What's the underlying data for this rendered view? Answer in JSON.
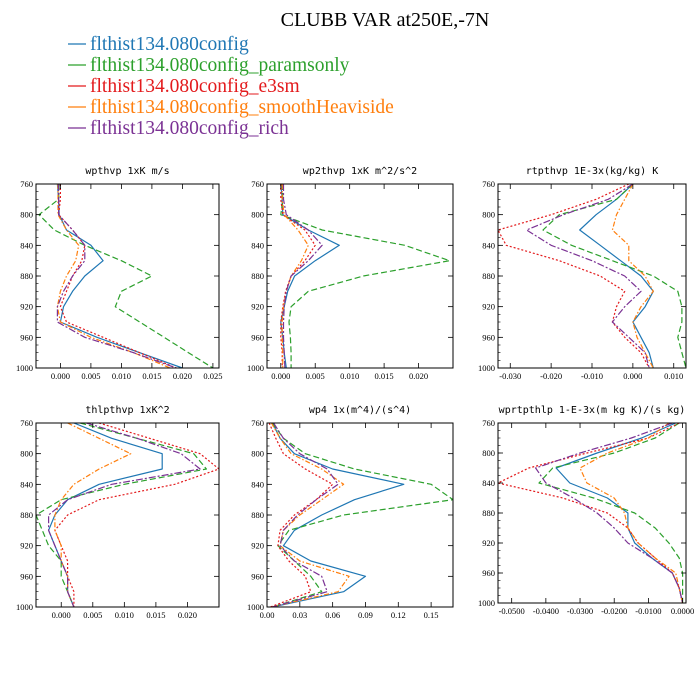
{
  "figure": {
    "title": "CLUBB VAR at250E,-7N"
  },
  "legend": [
    {
      "label": "flthist134.080config",
      "color": "#1f77b4"
    },
    {
      "label": "flthist134.080config_paramsonly",
      "color": "#2ca02c"
    },
    {
      "label": "flthist134.080config_e3sm",
      "color": "#e31a1c"
    },
    {
      "label": "flthist134.080config_smoothHeaviside",
      "color": "#ff7f0e"
    },
    {
      "label": "flthist134.080config_rich",
      "color": "#7b3294"
    }
  ],
  "chart_data": [
    {
      "type": "line",
      "title": "wpthvp  1xK m/s",
      "xlim": [
        -0.004,
        0.026
      ],
      "ylim": [
        760,
        1000
      ],
      "y_inverted": true,
      "xticks": [
        "0.000",
        "0.005",
        "0.010",
        "0.015",
        "0.020",
        "0.025"
      ],
      "xtick_values": [
        0,
        0.005,
        0.01,
        0.015,
        0.02,
        0.025
      ],
      "yticks": [
        "760",
        "800",
        "840",
        "880",
        "920",
        "960",
        "1000"
      ],
      "y": [
        760,
        780,
        800,
        820,
        840,
        860,
        880,
        900,
        920,
        940,
        960,
        980,
        1000
      ],
      "series": [
        {
          "values": [
            -0.0005,
            -0.0003,
            -0.0002,
            0.001,
            0.005,
            0.007,
            0.004,
            0.002,
            0.0005,
            0.0,
            0.006,
            0.013,
            0.02
          ]
        },
        {
          "values": [
            -0.0002,
            -0.0003,
            -0.0035,
            -0.001,
            0.004,
            0.01,
            0.015,
            0.01,
            0.009,
            0.013,
            0.017,
            0.021,
            0.025
          ]
        },
        {
          "values": [
            0.0,
            0.0,
            -0.0003,
            0.002,
            0.004,
            0.0035,
            0.002,
            0.001,
            0.0,
            0.001,
            0.007,
            0.013,
            0.019
          ]
        },
        {
          "values": [
            -0.0004,
            -0.0004,
            -0.0004,
            0.001,
            0.003,
            0.0025,
            0.001,
            0.0,
            -0.0005,
            0.0,
            0.005,
            0.012,
            0.018
          ]
        },
        {
          "values": [
            -0.0003,
            -0.0003,
            -0.0003,
            0.002,
            0.004,
            0.004,
            0.002,
            0.0005,
            -0.0005,
            -0.0005,
            0.004,
            0.012,
            0.019
          ]
        }
      ]
    },
    {
      "type": "line",
      "title": "wp2thvp  1xK m^2/s^2",
      "xlim": [
        -0.002,
        0.025
      ],
      "ylim": [
        760,
        1000
      ],
      "y_inverted": true,
      "xticks": [
        "0.000",
        "0.005",
        "0.010",
        "0.015",
        "0.020"
      ],
      "xtick_values": [
        0,
        0.005,
        0.01,
        0.015,
        0.02
      ],
      "yticks": [
        "760",
        "800",
        "840",
        "880",
        "920",
        "960",
        "1000"
      ],
      "y": [
        760,
        780,
        800,
        820,
        840,
        860,
        880,
        900,
        920,
        940,
        960,
        980,
        1000
      ],
      "series": [
        {
          "values": [
            0.0,
            0.0002,
            0.0003,
            0.004,
            0.0085,
            0.005,
            0.002,
            0.001,
            0.0005,
            0.0,
            0.0003,
            0.0005,
            0.0008
          ]
        },
        {
          "values": [
            0.0002,
            0.0003,
            0.0,
            0.006,
            0.018,
            0.0245,
            0.012,
            0.004,
            0.0015,
            0.0012,
            0.0014,
            0.0015,
            0.0015
          ]
        },
        {
          "values": [
            0.0,
            0.0,
            0.0003,
            0.0035,
            0.005,
            0.0035,
            0.0015,
            0.0007,
            0.0003,
            0.0,
            0.0,
            0.0002,
            0.0002
          ]
        },
        {
          "values": [
            0.0002,
            0.0002,
            0.0005,
            0.0025,
            0.004,
            0.003,
            0.0015,
            0.0008,
            0.0004,
            0.0002,
            0.0002,
            0.0003,
            0.0003
          ]
        },
        {
          "values": [
            0.0004,
            0.0004,
            0.0008,
            0.004,
            0.006,
            0.004,
            0.0015,
            0.0008,
            0.0005,
            0.0004,
            0.0004,
            0.0005,
            0.0006
          ]
        }
      ]
    },
    {
      "type": "line",
      "title": "rtpthvp  1E-3x(kg/kg) K",
      "xlim": [
        -0.033,
        0.013
      ],
      "ylim": [
        760,
        1000
      ],
      "y_inverted": true,
      "xticks": [
        "-0.030",
        "-0.020",
        "-0.010",
        "0.000",
        "0.010"
      ],
      "xtick_values": [
        -0.03,
        -0.02,
        -0.01,
        0,
        0.01
      ],
      "yticks": [
        "760",
        "800",
        "840",
        "880",
        "920",
        "960",
        "1000"
      ],
      "y": [
        760,
        780,
        800,
        820,
        840,
        860,
        880,
        900,
        920,
        940,
        960,
        980,
        1000
      ],
      "series": [
        {
          "values": [
            0.0,
            -0.004,
            -0.009,
            -0.013,
            -0.008,
            -0.003,
            0.002,
            0.005,
            0.003,
            0.0,
            0.002,
            0.004,
            0.005
          ]
        },
        {
          "values": [
            0.0,
            -0.004,
            -0.018,
            -0.022,
            -0.015,
            -0.005,
            0.005,
            0.011,
            0.012,
            0.012,
            0.011,
            0.012,
            0.013
          ]
        },
        {
          "values": [
            -0.001,
            -0.009,
            -0.02,
            -0.033,
            -0.031,
            -0.018,
            -0.008,
            -0.002,
            -0.004,
            -0.005,
            -0.002,
            0.002,
            0.004
          ]
        },
        {
          "values": [
            0.0,
            -0.002,
            -0.004,
            -0.005,
            -0.001,
            -0.001,
            0.003,
            0.005,
            0.002,
            0.0,
            0.001,
            0.003,
            0.005
          ]
        },
        {
          "values": [
            0.0,
            -0.006,
            -0.017,
            -0.026,
            -0.02,
            -0.01,
            -0.002,
            0.002,
            -0.002,
            -0.005,
            -0.001,
            0.003,
            0.004
          ]
        }
      ]
    },
    {
      "type": "line",
      "title": "thlpthvp  1xK^2",
      "xlim": [
        -0.004,
        0.025
      ],
      "ylim": [
        760,
        1000
      ],
      "y_inverted": true,
      "xticks": [
        "0.000",
        "0.005",
        "0.010",
        "0.015",
        "0.020"
      ],
      "xtick_values": [
        0,
        0.005,
        0.01,
        0.015,
        0.02
      ],
      "yticks": [
        "760",
        "800",
        "840",
        "880",
        "920",
        "960",
        "1000"
      ],
      "y": [
        760,
        780,
        800,
        820,
        840,
        860,
        880,
        900,
        920,
        940,
        960,
        980,
        1000
      ],
      "series": [
        {
          "values": [
            0.002,
            0.008,
            0.016,
            0.016,
            0.006,
            0.001,
            -0.001,
            -0.002,
            -0.001,
            0.0,
            0.001,
            0.001,
            0.002
          ]
        },
        {
          "values": [
            0.003,
            0.012,
            0.021,
            0.023,
            0.01,
            0.0,
            -0.004,
            -0.003,
            -0.002,
            0.0,
            0.0,
            0.001,
            0.002
          ]
        },
        {
          "values": [
            0.006,
            0.014,
            0.022,
            0.025,
            0.018,
            0.006,
            0.001,
            -0.001,
            0.0,
            0.001,
            0.001,
            0.002,
            0.002
          ]
        },
        {
          "values": [
            0.001,
            0.006,
            0.011,
            0.006,
            0.002,
            0.0,
            -0.001,
            -0.001,
            0.0,
            0.0,
            0.001,
            0.001,
            0.002
          ]
        },
        {
          "values": [
            0.004,
            0.012,
            0.019,
            0.022,
            0.008,
            0.001,
            -0.002,
            -0.002,
            -0.001,
            0.0,
            0.001,
            0.001,
            0.002
          ]
        }
      ]
    },
    {
      "type": "line",
      "title": "wp4  1x(m^4)/(s^4)",
      "xlim": [
        0.0,
        0.17
      ],
      "ylim": [
        760,
        1000
      ],
      "y_inverted": true,
      "xticks": [
        "0.00",
        "0.03",
        "0.06",
        "0.09",
        "0.12",
        "0.15"
      ],
      "xtick_values": [
        0,
        0.03,
        0.06,
        0.09,
        0.12,
        0.15
      ],
      "yticks": [
        "760",
        "800",
        "840",
        "880",
        "920",
        "960",
        "1000"
      ],
      "y": [
        760,
        780,
        800,
        820,
        840,
        860,
        880,
        900,
        920,
        940,
        960,
        980,
        1000
      ],
      "series": [
        {
          "values": [
            0.005,
            0.012,
            0.025,
            0.06,
            0.125,
            0.08,
            0.05,
            0.025,
            0.015,
            0.04,
            0.09,
            0.07,
            0.005
          ]
        },
        {
          "values": [
            0.005,
            0.015,
            0.035,
            0.08,
            0.15,
            0.17,
            0.07,
            0.02,
            0.01,
            0.025,
            0.04,
            0.05,
            0.005
          ]
        },
        {
          "values": [
            0.002,
            0.008,
            0.015,
            0.035,
            0.06,
            0.045,
            0.025,
            0.012,
            0.01,
            0.02,
            0.035,
            0.04,
            0.003
          ]
        },
        {
          "values": [
            0.004,
            0.012,
            0.022,
            0.05,
            0.07,
            0.05,
            0.03,
            0.015,
            0.012,
            0.03,
            0.075,
            0.065,
            0.004
          ]
        },
        {
          "values": [
            0.006,
            0.015,
            0.03,
            0.055,
            0.065,
            0.045,
            0.028,
            0.015,
            0.012,
            0.025,
            0.05,
            0.055,
            0.005
          ]
        }
      ]
    },
    {
      "type": "line",
      "title": "wprtpthlp  1-E-3x(m kg K)/(s kg)",
      "xlim": [
        -0.054,
        0.001
      ],
      "ylim": [
        760,
        1000
      ],
      "y_inverted": true,
      "xticks": [
        "-0.0500",
        "-0.0400",
        "-0.0300",
        "-0.0200",
        "-0.0100",
        "0.0000"
      ],
      "xtick_values": [
        -0.05,
        -0.04,
        -0.03,
        -0.02,
        -0.01,
        0
      ],
      "yticks": [
        "760",
        "800",
        "840",
        "880",
        "920",
        "960",
        "1000"
      ],
      "y": [
        760,
        780,
        800,
        820,
        840,
        860,
        880,
        900,
        920,
        940,
        960,
        980,
        1000
      ],
      "series": [
        {
          "values": [
            -0.002,
            -0.012,
            -0.025,
            -0.037,
            -0.033,
            -0.022,
            -0.016,
            -0.016,
            -0.014,
            -0.009,
            -0.003,
            -0.001,
            0.0
          ]
        },
        {
          "values": [
            -0.001,
            -0.008,
            -0.02,
            -0.038,
            -0.042,
            -0.026,
            -0.014,
            -0.008,
            -0.004,
            -0.001,
            0.0,
            0.0,
            0.0
          ]
        },
        {
          "values": [
            -0.001,
            -0.01,
            -0.028,
            -0.045,
            -0.054,
            -0.035,
            -0.022,
            -0.016,
            -0.013,
            -0.008,
            -0.003,
            -0.001,
            0.0
          ]
        },
        {
          "values": [
            -0.004,
            -0.01,
            -0.022,
            -0.03,
            -0.028,
            -0.02,
            -0.017,
            -0.016,
            -0.013,
            -0.008,
            -0.002,
            -0.001,
            0.0
          ]
        },
        {
          "values": [
            -0.003,
            -0.015,
            -0.03,
            -0.043,
            -0.04,
            -0.032,
            -0.025,
            -0.02,
            -0.016,
            -0.009,
            -0.003,
            -0.001,
            0.0
          ]
        }
      ]
    }
  ]
}
